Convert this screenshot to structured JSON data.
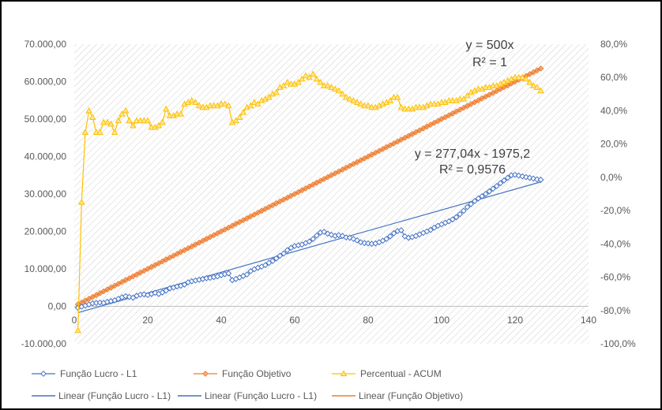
{
  "chart_data": {
    "type": "scatter",
    "x_axis": {
      "min": 0,
      "max": 140,
      "ticks": [
        0,
        20,
        40,
        60,
        80,
        100,
        120,
        140
      ],
      "tick_labels": [
        "0",
        "20",
        "40",
        "60",
        "80",
        "100",
        "120",
        "140"
      ]
    },
    "y_axis_left": {
      "min": -10000,
      "max": 70000,
      "ticks": [
        -10000,
        0,
        10000,
        20000,
        30000,
        40000,
        50000,
        60000,
        70000
      ],
      "tick_labels": [
        "-10.000,00",
        "0,00",
        "10.000,00",
        "20.000,00",
        "30.000,00",
        "40.000,00",
        "50.000,00",
        "60.000,00",
        "70.000,00"
      ]
    },
    "y_axis_right": {
      "min": -100,
      "max": 80,
      "ticks": [
        -100,
        -80,
        -60,
        -40,
        -20,
        0,
        20,
        40,
        60,
        80
      ],
      "tick_labels": [
        "-100,0%",
        "-80,0%",
        "-60,0%",
        "-40,0%",
        "-20,0%",
        "0,0%",
        "20,0%",
        "40,0%",
        "60,0%",
        "80,0%"
      ]
    },
    "grid": false,
    "plot_background": "diagonal hatch",
    "series": [
      {
        "name": "Função Lucro - L1",
        "marker": "diamond",
        "color": "#4472C4",
        "axis": "left",
        "x": [
          1,
          2,
          3,
          4,
          5,
          6,
          7,
          8,
          9,
          10,
          11,
          12,
          13,
          14,
          15,
          16,
          17,
          18,
          19,
          20,
          21,
          22,
          23,
          24,
          25,
          26,
          27,
          28,
          29,
          30,
          31,
          32,
          33,
          34,
          35,
          36,
          37,
          38,
          39,
          40,
          41,
          42,
          43,
          44,
          45,
          46,
          47,
          48,
          49,
          50,
          51,
          52,
          53,
          54,
          55,
          56,
          57,
          58,
          59,
          60,
          61,
          62,
          63,
          64,
          65,
          66,
          67,
          68,
          69,
          70,
          71,
          72,
          73,
          74,
          75,
          76,
          77,
          78,
          79,
          80,
          81,
          82,
          83,
          84,
          85,
          86,
          87,
          88,
          89,
          90,
          91,
          92,
          93,
          94,
          95,
          96,
          97,
          98,
          99,
          100,
          101,
          102,
          103,
          104,
          105,
          106,
          107,
          108,
          109,
          110,
          111,
          112,
          113,
          114,
          115,
          116,
          117,
          118,
          119,
          120,
          121,
          122,
          123,
          124,
          125,
          126,
          127
        ],
        "y": [
          -400,
          -100,
          200,
          500,
          800,
          900,
          1000,
          900,
          1200,
          1400,
          1600,
          2000,
          2400,
          2700,
          2500,
          2300,
          2800,
          3100,
          3200,
          3000,
          3300,
          3600,
          3300,
          3700,
          4200,
          4800,
          5000,
          5300,
          5500,
          5800,
          6400,
          6700,
          6900,
          7100,
          7300,
          7500,
          7600,
          7800,
          8000,
          8300,
          8600,
          8800,
          7000,
          7300,
          7700,
          8100,
          8500,
          9400,
          9900,
          10300,
          10600,
          11000,
          11600,
          12100,
          12800,
          13500,
          14100,
          15000,
          15600,
          16100,
          16300,
          16500,
          16900,
          17300,
          18000,
          18900,
          19700,
          19900,
          19400,
          19100,
          18800,
          19000,
          18800,
          18400,
          18300,
          18000,
          17600,
          17100,
          16900,
          16800,
          16700,
          16800,
          17100,
          17500,
          18000,
          18700,
          19500,
          20100,
          20300,
          18700,
          18300,
          18500,
          18800,
          19200,
          19600,
          20000,
          20400,
          21000,
          21500,
          21900,
          22300,
          22700,
          23200,
          23800,
          24600,
          25500,
          26500,
          27300,
          28100,
          28800,
          29400,
          30000,
          30700,
          31400,
          32100,
          32900,
          33600,
          34300,
          35000,
          35100,
          34900,
          34700,
          34500,
          34300,
          34100,
          33900,
          33800
        ]
      },
      {
        "name": "Função Objetivo",
        "marker": "diamond",
        "color": "#ED7D31",
        "axis": "left",
        "x_start": 1,
        "x_end": 127,
        "slope": 500
      },
      {
        "name": "Percentual - ACUM",
        "marker": "triangle",
        "color": "#FFC000",
        "axis": "right",
        "x": [
          1,
          2,
          3,
          4,
          5,
          6,
          7,
          8,
          9,
          10,
          11,
          12,
          13,
          14,
          15,
          16,
          17,
          18,
          19,
          20,
          21,
          22,
          23,
          24,
          25,
          26,
          27,
          28,
          29,
          30,
          31,
          32,
          33,
          34,
          35,
          36,
          37,
          38,
          39,
          40,
          41,
          42,
          43,
          44,
          45,
          46,
          47,
          48,
          49,
          50,
          51,
          52,
          53,
          54,
          55,
          56,
          57,
          58,
          59,
          60,
          61,
          62,
          63,
          64,
          65,
          66,
          67,
          68,
          69,
          70,
          71,
          72,
          73,
          74,
          75,
          76,
          77,
          78,
          79,
          80,
          81,
          82,
          83,
          84,
          85,
          86,
          87,
          88,
          89,
          90,
          91,
          92,
          93,
          94,
          95,
          96,
          97,
          98,
          99,
          100,
          101,
          102,
          103,
          104,
          105,
          106,
          107,
          108,
          109,
          110,
          111,
          112,
          113,
          114,
          115,
          116,
          117,
          118,
          119,
          120,
          121,
          122,
          123,
          124,
          125,
          126,
          127
        ],
        "y": [
          -92,
          -15,
          27,
          40,
          36,
          27,
          27,
          33,
          33,
          32,
          27,
          34,
          38,
          40,
          34,
          31,
          34,
          34,
          34,
          34,
          30,
          30,
          31,
          33,
          41,
          37,
          37,
          38,
          38,
          44,
          45,
          46,
          45,
          43,
          42,
          42,
          43,
          43,
          43,
          44,
          44,
          43,
          33,
          34,
          36,
          39,
          42,
          43,
          45,
          44,
          46,
          47,
          48,
          50,
          51,
          54,
          55,
          57,
          56,
          56,
          57,
          59,
          61,
          60,
          62,
          59,
          57,
          55,
          55,
          54,
          53,
          52,
          50,
          48,
          47,
          46,
          45,
          44,
          43,
          43,
          42,
          42,
          43,
          44,
          45,
          46,
          48,
          48,
          42,
          41,
          41,
          41,
          42,
          42,
          42,
          43,
          44,
          44,
          44,
          45,
          45,
          46,
          46,
          46,
          47,
          47,
          49,
          51,
          52,
          53,
          53,
          54,
          54,
          55,
          55,
          56,
          57,
          58,
          59,
          60,
          60,
          60,
          59,
          57,
          55,
          54,
          52
        ]
      }
    ],
    "trendlines": [
      {
        "name": "Linear (Função Lucro - L1)",
        "color": "#4472C4",
        "slope": 277.04,
        "intercept": -1975.2,
        "x_range": [
          1,
          127
        ],
        "equation": "y = 277,04x - 1975,2",
        "r2": "R² = 0,9576"
      },
      {
        "name": "Linear (Função Objetivo)",
        "color": "#ED7D31",
        "slope": 500,
        "intercept": 0,
        "x_range": [
          1,
          127
        ],
        "equation": "y = 500x",
        "r2": "R² = 1"
      }
    ],
    "legend": {
      "position": "bottom",
      "entries": [
        "Função Lucro - L1",
        "Função Objetivo",
        "Percentual - ACUM",
        "Linear (Função Lucro - L1)",
        "Linear (Função Lucro - L1)",
        "Linear (Função Objetivo)"
      ]
    }
  }
}
